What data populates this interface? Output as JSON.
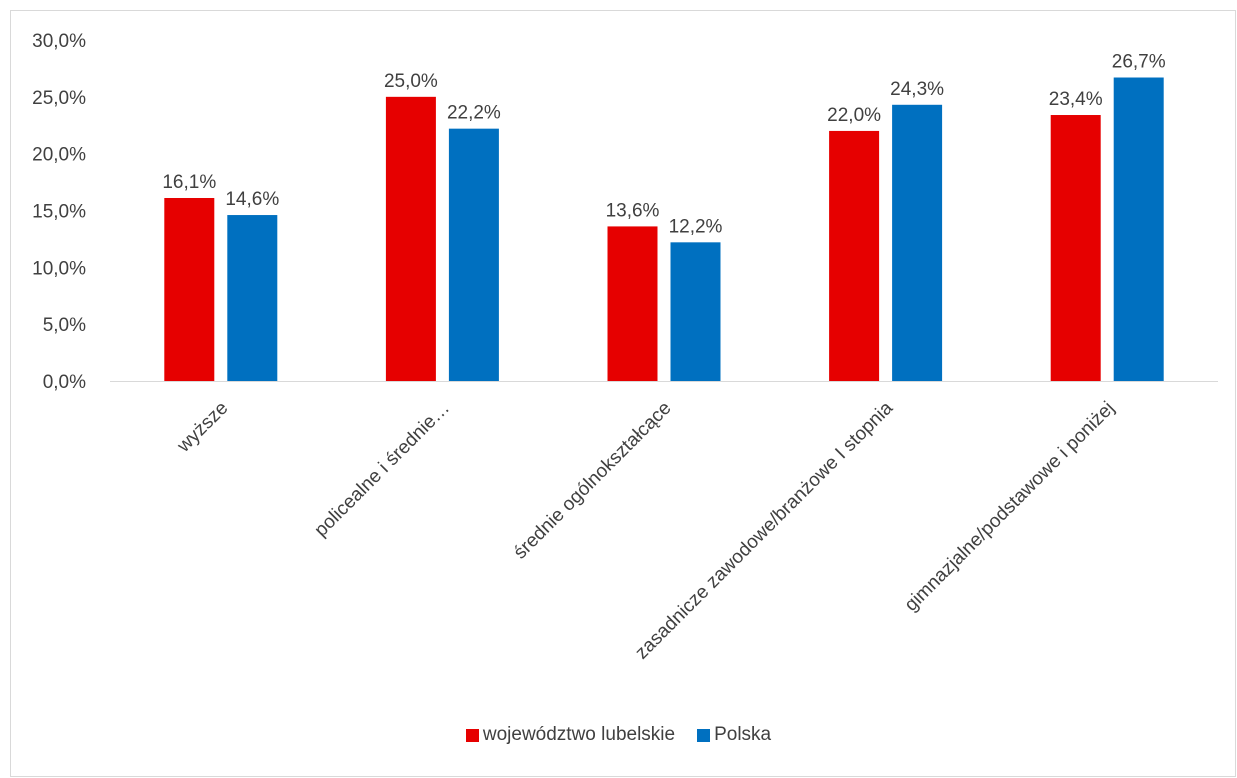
{
  "chart_data": {
    "type": "bar",
    "categories": [
      "wyższe",
      "policealne i średnie…",
      "średnie ogólnokształcące",
      "zasadnicze zawodowe/branżowe I stopnia",
      "gimnazjalne/podstawowe i poniżej"
    ],
    "series": [
      {
        "name": "województwo lubelskie",
        "color": "#e60000",
        "values": [
          16.1,
          25.0,
          13.6,
          22.0,
          23.4
        ],
        "labels": [
          "16,1%",
          "25,0%",
          "13,6%",
          "22,0%",
          "23,4%"
        ]
      },
      {
        "name": "Polska",
        "color": "#0070c0",
        "values": [
          14.6,
          22.2,
          12.2,
          24.3,
          26.7
        ],
        "labels": [
          "14,6%",
          "22,2%",
          "12,2%",
          "24,3%",
          "26,7%"
        ]
      }
    ],
    "yticks": [
      "0,0%",
      "5,0%",
      "10,0%",
      "15,0%",
      "20,0%",
      "25,0%",
      "30,0%"
    ],
    "ylim": [
      0,
      30
    ],
    "grid": false,
    "legend": "bottom"
  }
}
